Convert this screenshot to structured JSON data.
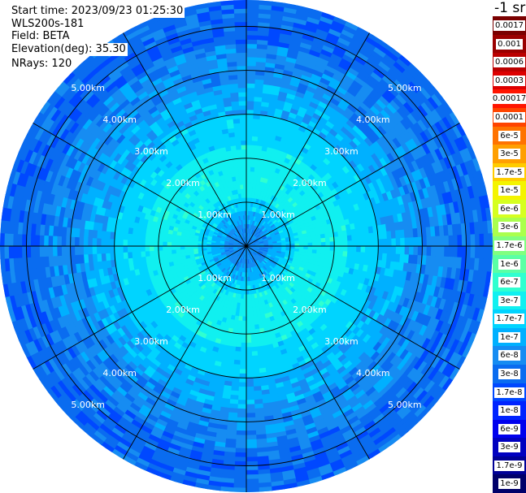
{
  "info": {
    "start_time": "Start time: 2023/09/23 01:25:30",
    "instrument": "WLS200s-181",
    "field": "Field: BETA",
    "elevation": "Elevation(deg): 35.30",
    "nrays": "NRays: 120"
  },
  "colorbar": {
    "unit": "-1 sr",
    "entries": [
      {
        "label": "0.0017",
        "color": "#7a0000"
      },
      {
        "label": "0.001",
        "color": "#9a0000"
      },
      {
        "label": "0.0006",
        "color": "#bb0000"
      },
      {
        "label": "0.0003",
        "color": "#dd0000"
      },
      {
        "label": "0.00017",
        "color": "#ff1500"
      },
      {
        "label": "0.0001",
        "color": "#ff4400"
      },
      {
        "label": "6e-5",
        "color": "#ff7300"
      },
      {
        "label": "3e-5",
        "color": "#ff9f00"
      },
      {
        "label": "1.7e-5",
        "color": "#ffcc00"
      },
      {
        "label": "1e-5",
        "color": "#f4f400"
      },
      {
        "label": "6e-6",
        "color": "#d6ff20"
      },
      {
        "label": "3e-6",
        "color": "#aaff4d"
      },
      {
        "label": "1.7e-6",
        "color": "#80ff80"
      },
      {
        "label": "1e-6",
        "color": "#5affa5"
      },
      {
        "label": "6e-7",
        "color": "#30ffd0"
      },
      {
        "label": "3e-7",
        "color": "#10f0f0"
      },
      {
        "label": "1.7e-7",
        "color": "#00d4ff"
      },
      {
        "label": "1e-7",
        "color": "#00b0ff"
      },
      {
        "label": "6e-8",
        "color": "#168cf2"
      },
      {
        "label": "3e-8",
        "color": "#0a6cf0"
      },
      {
        "label": "1.7e-8",
        "color": "#0048ff"
      },
      {
        "label": "1e-8",
        "color": "#0024ff"
      },
      {
        "label": "6e-9",
        "color": "#0000ee"
      },
      {
        "label": "3e-9",
        "color": "#0000c0"
      },
      {
        "label": "1.7e-9",
        "color": "#000096"
      },
      {
        "label": "1e-9",
        "color": "#00006a"
      }
    ]
  },
  "chart_data": {
    "type": "heatmap",
    "projection": "polar",
    "field": "BETA",
    "units": "-1 sr",
    "max_range_km": 5.6,
    "range_rings_km": [
      1,
      2,
      3,
      4,
      5
    ],
    "ring_labels": [
      "1.00km",
      "2.00km",
      "3.00km",
      "4.00km",
      "5.00km"
    ],
    "azimuth_spokes_deg": [
      0,
      30,
      60,
      90,
      120,
      150,
      180,
      210,
      240,
      270,
      300,
      330
    ],
    "nrays": 120,
    "range_profile": [
      {
        "range_km": [
          0.0,
          0.5
        ],
        "beta": 6e-08
      },
      {
        "range_km": [
          0.5,
          0.8
        ],
        "beta": 1e-07
      },
      {
        "range_km": [
          0.8,
          1.1
        ],
        "beta": 1.7e-07
      },
      {
        "range_km": [
          1.1,
          2.3
        ],
        "beta": 3e-07
      },
      {
        "range_km": [
          2.3,
          3.0
        ],
        "beta": 1.7e-07
      },
      {
        "range_km": [
          3.0,
          3.7
        ],
        "beta": 1e-07
      },
      {
        "range_km": [
          3.7,
          4.6
        ],
        "beta": 6e-08
      },
      {
        "range_km": [
          4.6,
          5.6
        ],
        "beta": 3e-08
      }
    ]
  }
}
